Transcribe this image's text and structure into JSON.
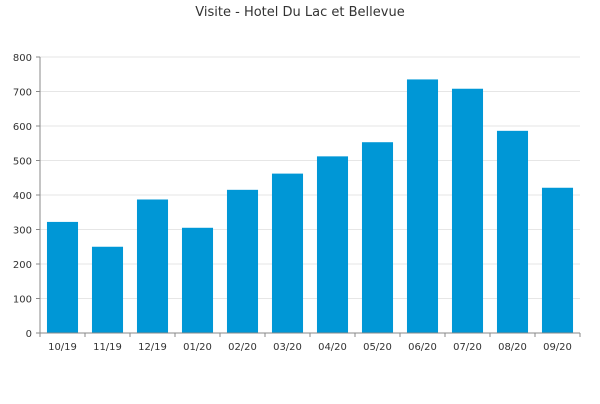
{
  "chart_data": {
    "type": "bar",
    "title": "Visite - Hotel Du Lac et Bellevue",
    "categories": [
      "10/19",
      "11/19",
      "12/19",
      "01/20",
      "02/20",
      "03/20",
      "04/20",
      "05/20",
      "06/20",
      "07/20",
      "08/20",
      "09/20"
    ],
    "values": [
      322,
      250,
      387,
      305,
      415,
      462,
      512,
      553,
      735,
      708,
      586,
      421
    ],
    "xlabel": "",
    "ylabel": "",
    "ylim": [
      0,
      800
    ],
    "yticks": [
      0,
      100,
      200,
      300,
      400,
      500,
      600,
      700,
      800
    ],
    "grid": true,
    "legend": "none",
    "colors": {
      "bar": "#0097d6",
      "grid": "#e6e6e6",
      "axis": "#888888",
      "text": "#333333"
    }
  }
}
